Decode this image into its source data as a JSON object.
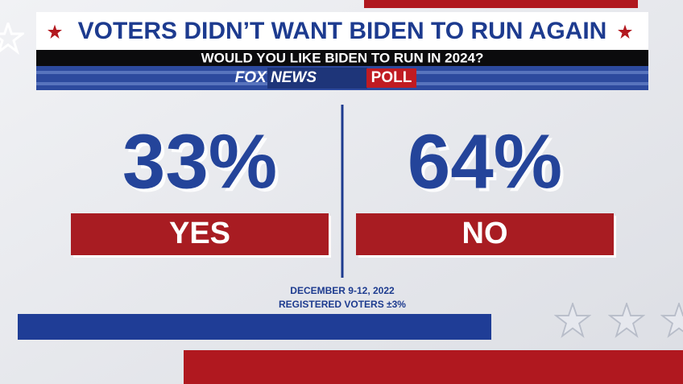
{
  "header": {
    "title": "VOTERS DIDN’T WANT BIDEN TO RUN AGAIN",
    "question": "WOULD YOU LIKE BIDEN TO RUN IN 2024?",
    "brand": "FOX NEWS",
    "brand_tag": "POLL"
  },
  "results": [
    {
      "value": "33%",
      "label": "YES"
    },
    {
      "value": "64%",
      "label": "NO"
    }
  ],
  "footer": {
    "dates": "DECEMBER 9-12, 2022",
    "sample": "REGISTERED VOTERS ±3%"
  }
}
